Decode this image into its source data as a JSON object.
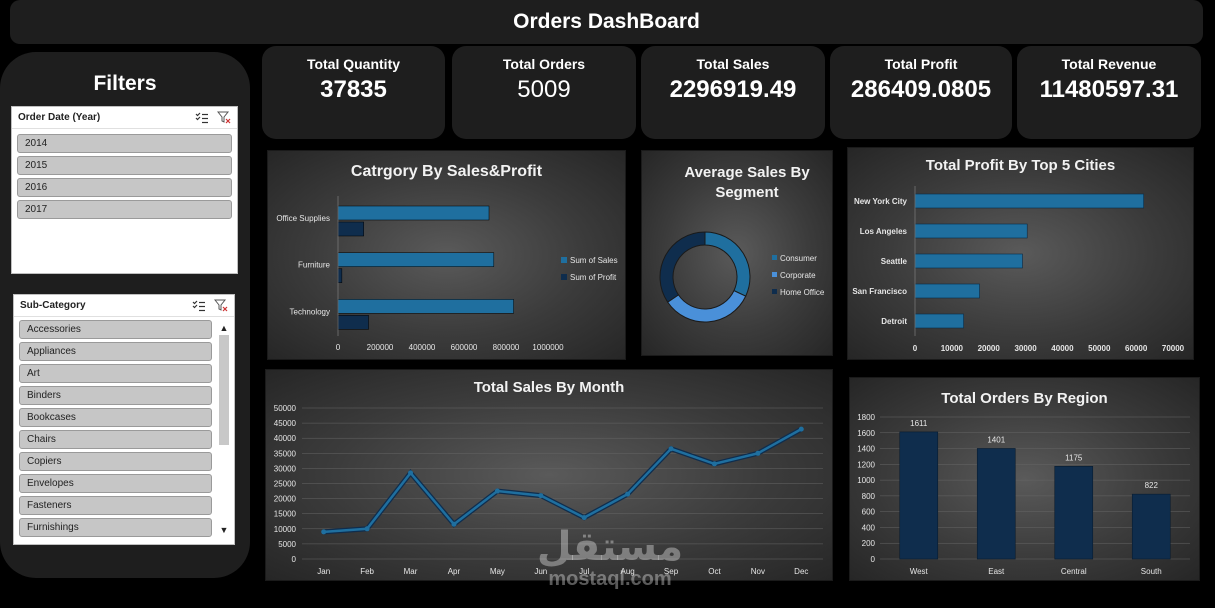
{
  "dashboard": {
    "title": "Orders DashBoard"
  },
  "filters": {
    "title": "Filters",
    "year_slicer": {
      "label": "Order Date (Year)",
      "items": [
        "2014",
        "2015",
        "2016",
        "2017"
      ]
    },
    "subcat_slicer": {
      "label": "Sub-Category",
      "items": [
        "Accessories",
        "Appliances",
        "Art",
        "Binders",
        "Bookcases",
        "Chairs",
        "Copiers",
        "Envelopes",
        "Fasteners",
        "Furnishings"
      ]
    }
  },
  "kpis": [
    {
      "label": "Total Quantity",
      "value": "37835"
    },
    {
      "label": "Total Orders",
      "value": "5009"
    },
    {
      "label": "Total Sales",
      "value": "2296919.49"
    },
    {
      "label": "Total Profit",
      "value": "286409.0805"
    },
    {
      "label": "Total Revenue",
      "value": "11480597.31"
    }
  ],
  "watermark": {
    "arabic": "مستقل",
    "latin": "mostaql.com"
  },
  "colors": {
    "blue": "#1f6f9f",
    "navy": "#0f2d4d",
    "light_blue": "#4a90d9",
    "bar_region": "#0f2d4d"
  },
  "chart_data": [
    {
      "id": "category",
      "type": "bar",
      "title": "Catrgory By Sales&Profit",
      "categories": [
        "Office Supplies",
        "Furniture",
        "Technology"
      ],
      "series": [
        {
          "name": "Sum of Sales",
          "values": [
            719047,
            742000,
            836154
          ]
        },
        {
          "name": "Sum of Profit",
          "values": [
            122491,
            18451,
            145455
          ]
        }
      ],
      "xlim": [
        0,
        1000000
      ],
      "xticks": [
        "0",
        "200000",
        "400000",
        "600000",
        "800000",
        "1000000"
      ],
      "orientation": "horizontal",
      "legend": "right"
    },
    {
      "id": "segment",
      "type": "pie",
      "title": "Average Sales By Segment",
      "labels": [
        "Consumer",
        "Corporate",
        "Home Office"
      ],
      "values": [
        223,
        234,
        240
      ],
      "legend": "right"
    },
    {
      "id": "cities",
      "type": "bar",
      "title": "Total Profit By Top 5 Cities",
      "categories": [
        "New York City",
        "Los Angeles",
        "Seattle",
        "San Francisco",
        "Detroit"
      ],
      "values": [
        62037,
        30441,
        29156,
        17508,
        13181
      ],
      "xlim": [
        0,
        70000
      ],
      "xticks": [
        "0",
        "10000",
        "20000",
        "30000",
        "40000",
        "50000",
        "60000",
        "70000"
      ],
      "orientation": "horizontal"
    },
    {
      "id": "month",
      "type": "line",
      "title": "Total Sales By Month",
      "x": [
        "Jan",
        "Feb",
        "Mar",
        "Apr",
        "May",
        "Jun",
        "Jul",
        "Aug",
        "Sep",
        "Oct",
        "Nov",
        "Dec"
      ],
      "values": [
        9000,
        10000,
        28500,
        11500,
        22500,
        21000,
        13700,
        21500,
        36500,
        31500,
        35000,
        43000
      ],
      "ylim": [
        0,
        50000
      ],
      "yticks": [
        "0",
        "5000",
        "10000",
        "15000",
        "20000",
        "25000",
        "30000",
        "35000",
        "40000",
        "45000",
        "50000"
      ],
      "grid": true
    },
    {
      "id": "region",
      "type": "bar",
      "title": "Total Orders By Region",
      "categories": [
        "West",
        "East",
        "Central",
        "South"
      ],
      "values": [
        1611,
        1401,
        1175,
        822
      ],
      "data_labels": [
        "1611",
        "1401",
        "1175",
        "822"
      ],
      "ylim": [
        0,
        1800
      ],
      "yticks": [
        "0",
        "200",
        "400",
        "600",
        "800",
        "1000",
        "1200",
        "1400",
        "1600",
        "1800"
      ],
      "grid": true
    }
  ]
}
